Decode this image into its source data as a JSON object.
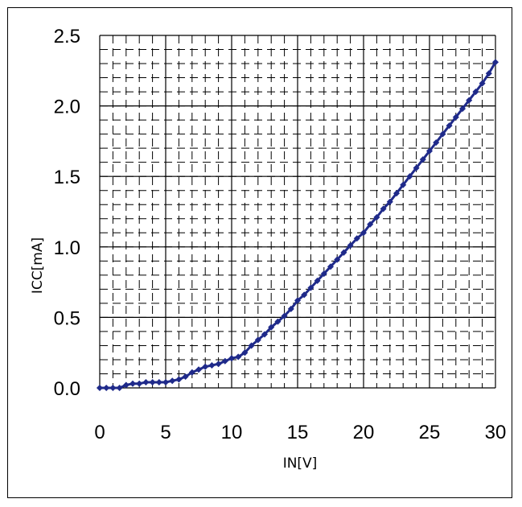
{
  "chart_data": {
    "type": "line",
    "title": "",
    "xlabel": "IN[V]",
    "ylabel": "ICC[mA]",
    "xlim": [
      0,
      30
    ],
    "ylim": [
      0,
      2.5
    ],
    "x_ticks": [
      "0",
      "5",
      "10",
      "15",
      "20",
      "25",
      "30"
    ],
    "y_ticks": [
      "0.0",
      "0.5",
      "1.0",
      "1.5",
      "2.0",
      "2.5"
    ],
    "grid": "major solid, minor dashed",
    "line_color": "#1f2a8a",
    "series": [
      {
        "marker": "diamond",
        "x": [
          0,
          0.5,
          1,
          1.5,
          2,
          2.5,
          3,
          3.5,
          4,
          4.5,
          5,
          5.5,
          6,
          6.5,
          7,
          7.5,
          8,
          8.5,
          9,
          9.5,
          10,
          10.5,
          11,
          11.5,
          12,
          12.5,
          13,
          13.5,
          14,
          14.5,
          15,
          15.5,
          16,
          16.5,
          17,
          17.5,
          18,
          18.5,
          19,
          19.5,
          20,
          20.5,
          21,
          21.5,
          22,
          22.5,
          23,
          23.5,
          24,
          24.5,
          25,
          25.5,
          26,
          26.5,
          27,
          27.5,
          28,
          28.5,
          29,
          29.5,
          30
        ],
        "y": [
          0.0,
          0.0,
          0.0,
          0.0,
          0.02,
          0.03,
          0.03,
          0.04,
          0.04,
          0.04,
          0.04,
          0.05,
          0.06,
          0.08,
          0.11,
          0.13,
          0.15,
          0.16,
          0.17,
          0.19,
          0.21,
          0.22,
          0.25,
          0.3,
          0.34,
          0.38,
          0.43,
          0.47,
          0.51,
          0.56,
          0.62,
          0.66,
          0.71,
          0.76,
          0.81,
          0.86,
          0.91,
          0.96,
          1.01,
          1.06,
          1.1,
          1.16,
          1.21,
          1.27,
          1.32,
          1.38,
          1.44,
          1.5,
          1.56,
          1.62,
          1.68,
          1.74,
          1.8,
          1.86,
          1.92,
          1.98,
          2.04,
          2.1,
          2.16,
          2.23,
          2.31
        ]
      }
    ]
  }
}
